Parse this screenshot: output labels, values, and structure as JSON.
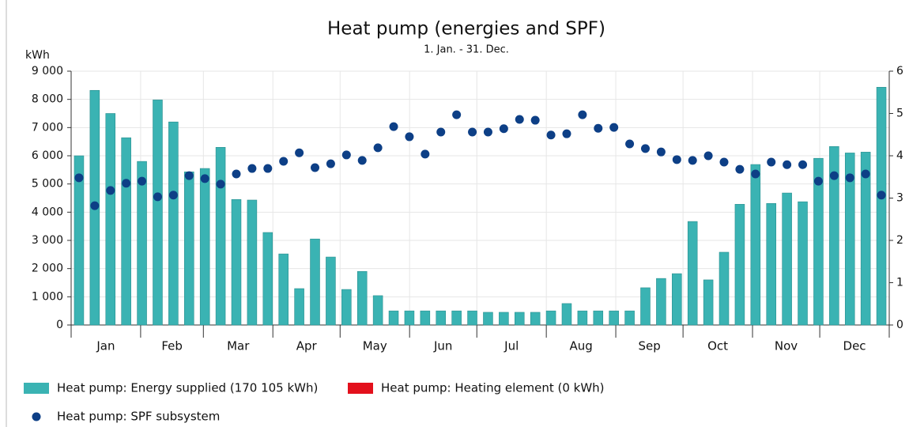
{
  "chart_data": {
    "type": "bar",
    "title": "Heat pump (energies and SPF)",
    "subtitle": "1. Jan. - 31. Dec.",
    "y_label": "kWh",
    "categories": [
      null,
      null,
      null,
      null,
      null,
      null,
      null,
      null,
      null,
      null,
      null,
      null,
      null,
      null,
      null,
      null,
      null,
      null,
      null,
      null,
      null,
      null,
      null,
      null,
      null,
      null,
      null,
      null,
      null,
      null,
      null,
      null,
      null,
      null,
      null,
      null,
      null,
      null,
      null,
      null,
      null,
      null,
      null,
      null,
      null,
      null,
      null,
      null,
      null,
      null,
      null,
      null
    ],
    "months": [
      "Jan",
      "Feb",
      "Mar",
      "Apr",
      "May",
      "Jun",
      "Jul",
      "Aug",
      "Sep",
      "Oct",
      "Nov",
      "Dec"
    ],
    "series": [
      {
        "name": "Heat pump: Energy supplied (170 105 kWh)",
        "color": "#3ab3b3",
        "type": "bar",
        "values": [
          6000,
          8320,
          7500,
          6640,
          5800,
          7980,
          7200,
          5430,
          5550,
          6300,
          4450,
          4430,
          3280,
          2520,
          1290,
          3050,
          2410,
          1260,
          1900,
          1040,
          500,
          500,
          500,
          500,
          500,
          500,
          450,
          450,
          450,
          450,
          500,
          760,
          500,
          500,
          500,
          500,
          1320,
          1650,
          1820,
          3670,
          1600,
          2580,
          4280,
          5690,
          4310,
          4680,
          4370,
          5910,
          6330,
          6100,
          6130,
          8430
        ]
      },
      {
        "name": "Heat pump: Heating element (0 kWh)",
        "color": "#e3101c",
        "type": "bar",
        "values": [
          0,
          0,
          0,
          0,
          0,
          0,
          0,
          0,
          0,
          0,
          0,
          0,
          0,
          0,
          0,
          0,
          0,
          0,
          0,
          0,
          0,
          0,
          0,
          0,
          0,
          0,
          0,
          0,
          0,
          0,
          0,
          0,
          0,
          0,
          0,
          0,
          0,
          0,
          0,
          0,
          0,
          0,
          0,
          0,
          0,
          0,
          0,
          0,
          0,
          0,
          0,
          0
        ]
      },
      {
        "name": "Heat pump: SPF subsystem",
        "color": "#0d3f86",
        "type": "scatter",
        "axis": "y2",
        "values": [
          3.48,
          2.82,
          3.18,
          3.35,
          3.4,
          3.03,
          3.07,
          3.53,
          3.46,
          3.33,
          3.57,
          3.7,
          3.7,
          3.87,
          4.07,
          3.72,
          3.81,
          4.02,
          3.89,
          4.19,
          4.69,
          4.45,
          4.04,
          4.56,
          4.97,
          4.56,
          4.56,
          4.64,
          4.86,
          4.84,
          4.49,
          4.52,
          4.97,
          4.65,
          4.67,
          4.28,
          4.17,
          4.09,
          3.91,
          3.89,
          4.0,
          3.85,
          3.68,
          3.57,
          3.85,
          3.79,
          3.79,
          3.4,
          3.53,
          3.48,
          3.57,
          3.07
        ]
      }
    ],
    "ylim": [
      0,
      9000
    ],
    "yticks": [
      0,
      {
        "value": 1000,
        "label": "1 000"
      },
      {
        "value": 2000,
        "label": "2 000"
      },
      {
        "value": 3000,
        "label": "3 000"
      },
      {
        "value": 4000,
        "label": "4 000"
      },
      {
        "value": 5000,
        "label": "5 000"
      },
      {
        "value": 6000,
        "label": "6 000"
      },
      {
        "value": 7000,
        "label": "7 000"
      },
      {
        "value": 8000,
        "label": "8 000"
      },
      {
        "value": 9000,
        "label": "9 000"
      }
    ],
    "y2lim": [
      0,
      6
    ],
    "y2ticks": [
      0,
      1,
      2,
      3,
      4,
      5,
      6
    ],
    "grid": true
  }
}
